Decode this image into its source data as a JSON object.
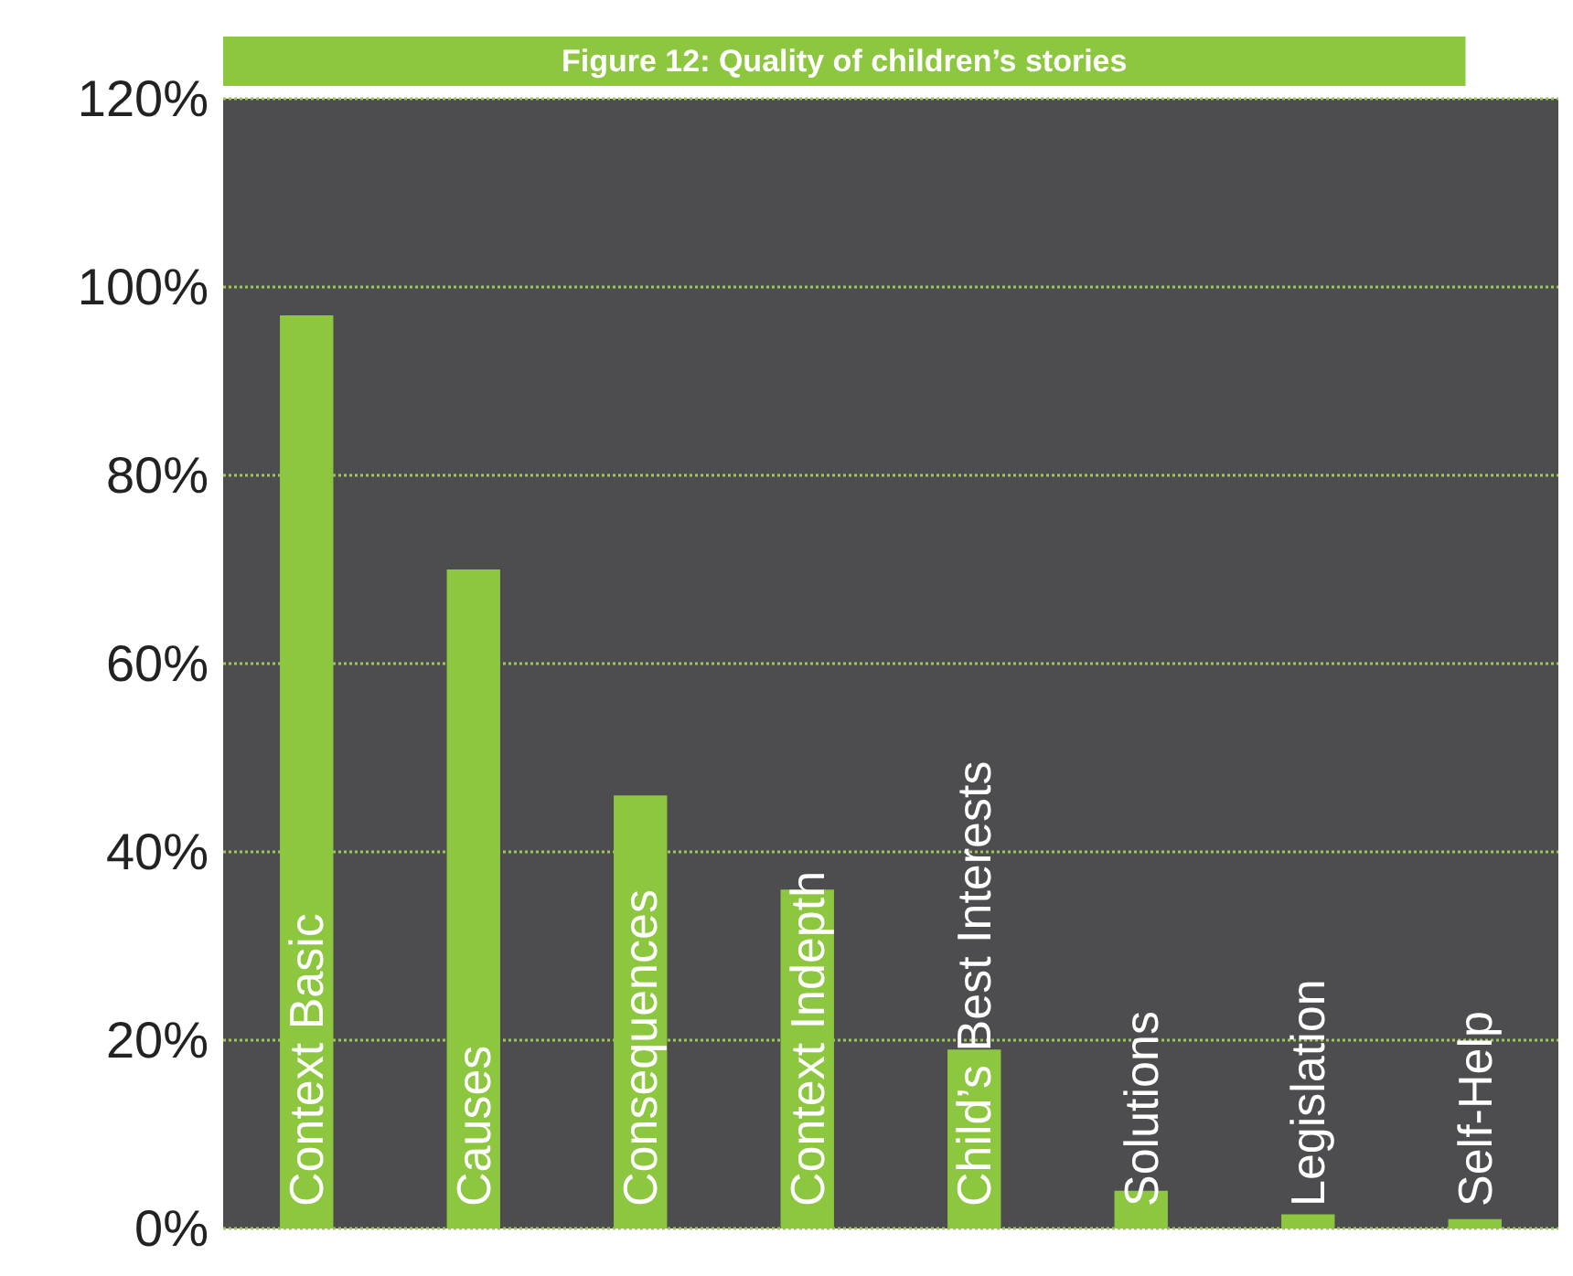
{
  "chart_data": {
    "type": "bar",
    "title": "Figure 12: Quality of children’s stories",
    "categories": [
      "Context Basic",
      "Causes",
      "Consequences",
      "Context Indepth",
      "Child’s Best Interests",
      "Solutions",
      "Legislation",
      "Self-Help"
    ],
    "values": [
      97,
      70,
      46,
      36,
      19,
      4,
      1.5,
      1
    ],
    "color": "#8dc63f",
    "ylim": [
      0,
      120
    ],
    "yticks": [
      {
        "value": 0,
        "label": "0%"
      },
      {
        "value": 20,
        "label": "20%"
      },
      {
        "value": 40,
        "label": "40%"
      },
      {
        "value": 60,
        "label": "60%"
      },
      {
        "value": 80,
        "label": "80%"
      },
      {
        "value": 100,
        "label": "100%"
      },
      {
        "value": 120,
        "label": "120%"
      }
    ],
    "grid": "y",
    "tick_labels": "y"
  }
}
